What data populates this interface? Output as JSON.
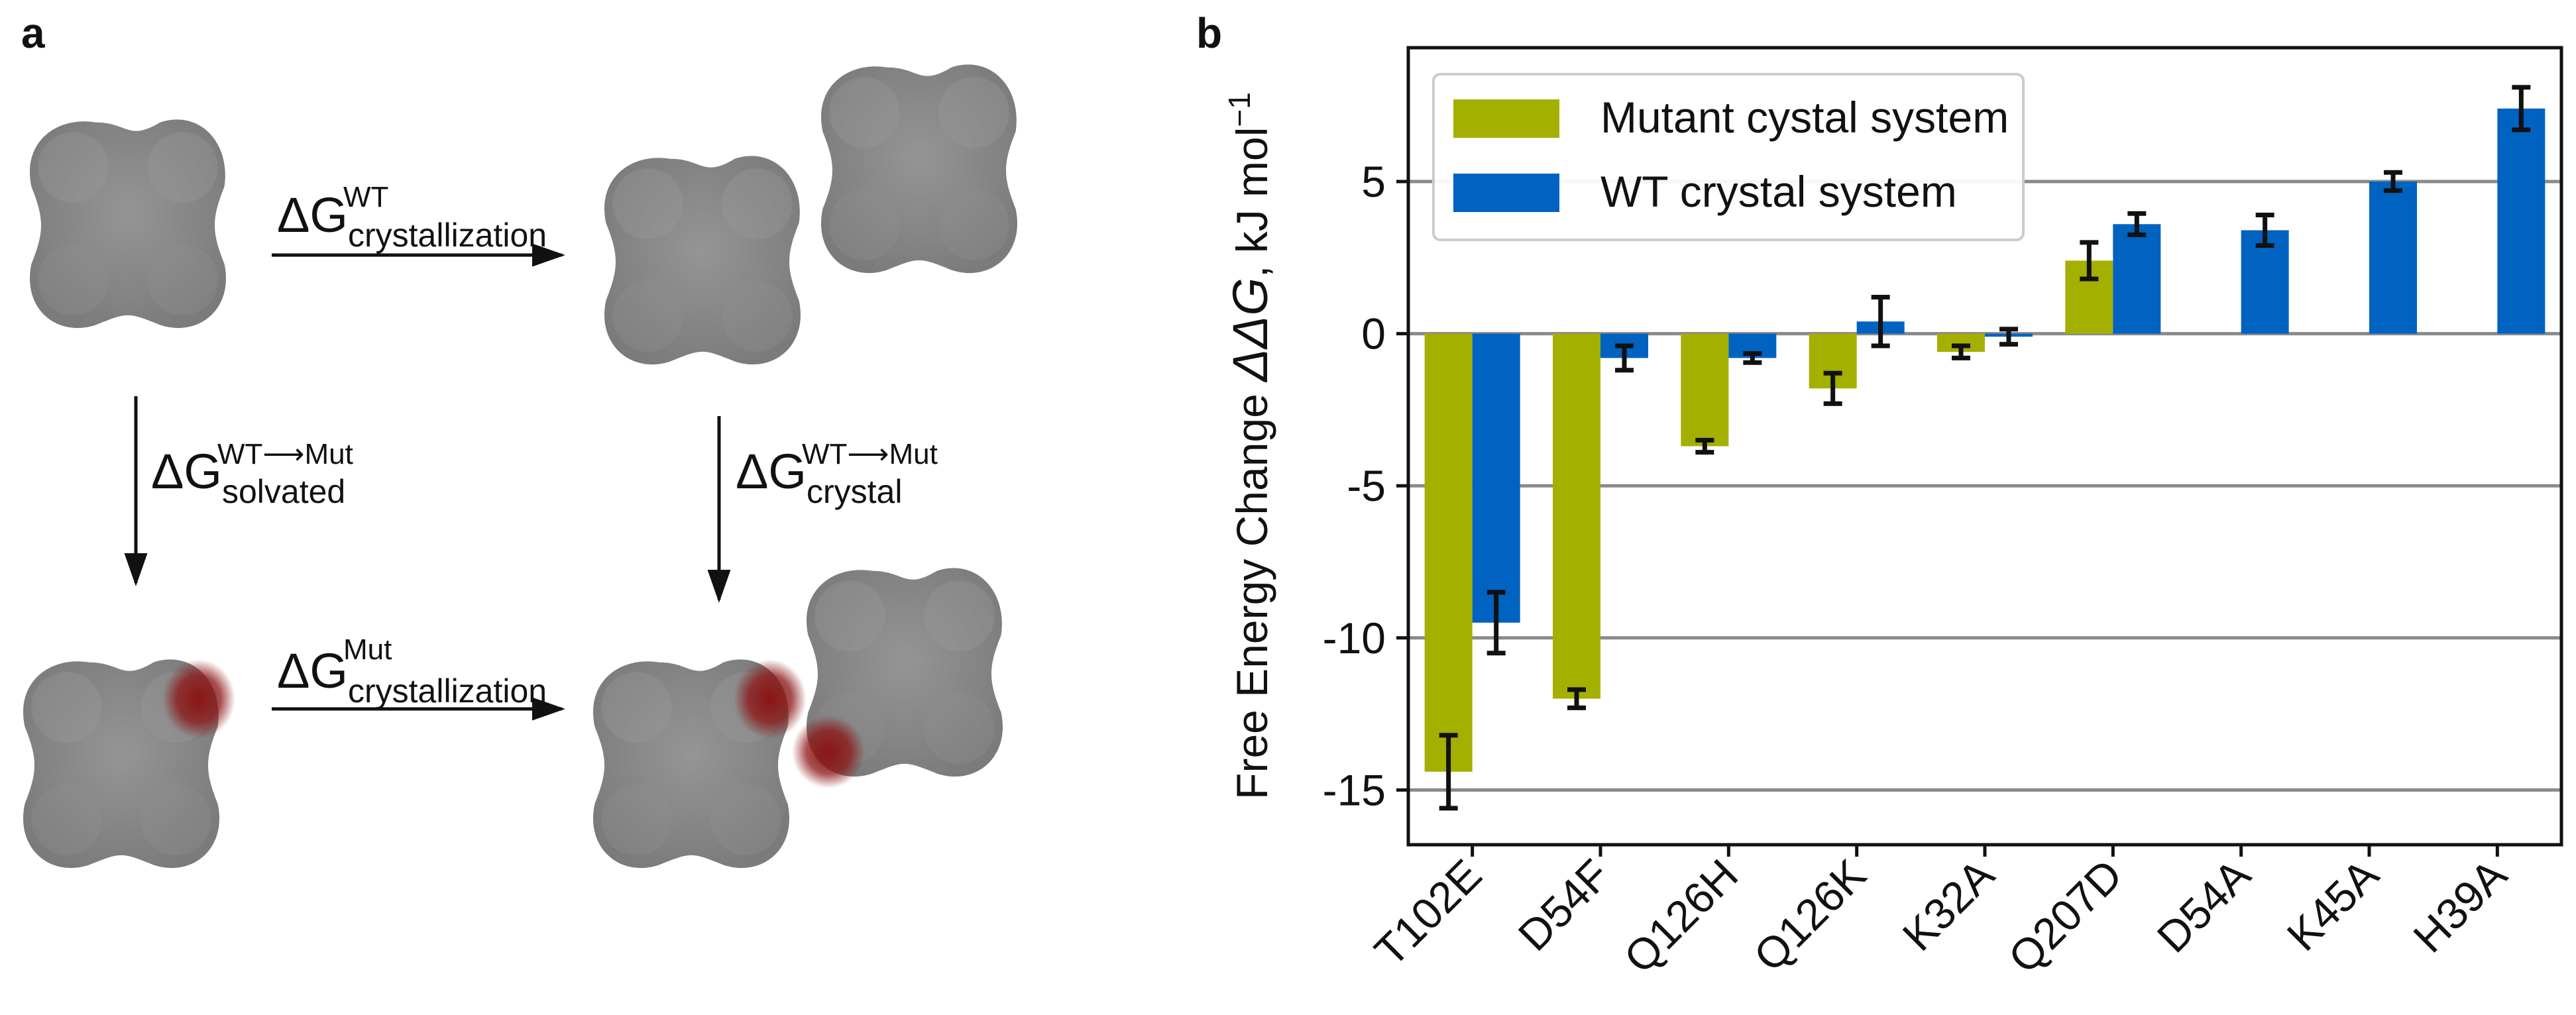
{
  "panel_a": {
    "label": "a",
    "wt_crystallization": {
      "sub": "crystallization",
      "sup": "WT"
    },
    "wt_to_mut_solvated": {
      "sub": "solvated",
      "sup": "WT⟶Mut"
    },
    "wt_to_mut_crystal": {
      "sub": "crystal",
      "sup": "WT⟶Mut"
    },
    "mut_crystallization": {
      "sub": "crystallization",
      "sup": "Mut"
    },
    "delta_g": "ΔG",
    "colors": {
      "molecule": "#8a8a8a",
      "mutation": "#8b1414"
    }
  },
  "panel_b": {
    "label": "b"
  },
  "chart_data": {
    "type": "bar",
    "title": "",
    "xlabel": "",
    "ylabel_prefix": "Free Energy Change ",
    "ylabel_symbol": "ΔΔG",
    "ylabel_suffix": ", kJ mol",
    "ylabel_exp": "−1",
    "categories": [
      "T102E",
      "D54F",
      "Q126H",
      "Q126K",
      "K32A",
      "Q207D",
      "D54A",
      "K45A",
      "H39A"
    ],
    "series": [
      {
        "name": "Mutant cystal system",
        "color": "#a3b000",
        "values": [
          -14.4,
          -12.0,
          -3.7,
          -1.8,
          -0.6,
          2.4,
          null,
          null,
          null
        ],
        "errors": [
          1.2,
          0.3,
          0.2,
          0.5,
          0.2,
          0.6,
          null,
          null,
          null
        ]
      },
      {
        "name": "WT crystal system",
        "color": "#0062c1",
        "values": [
          -9.5,
          -0.8,
          -0.8,
          0.4,
          -0.1,
          3.6,
          3.4,
          5.0,
          7.4
        ],
        "errors": [
          1.0,
          0.4,
          0.15,
          0.8,
          0.25,
          0.35,
          0.5,
          0.3,
          0.7
        ]
      }
    ],
    "ylim": [
      -16.8,
      9.4
    ],
    "yticks": [
      5,
      0,
      -5,
      -10,
      -15
    ],
    "ytick_labels": [
      "5",
      "0",
      "-5",
      "-10",
      "-15"
    ],
    "gridlines": [
      5,
      0,
      -5,
      -10,
      -15
    ],
    "grid": true,
    "legend_position": "top-left"
  }
}
